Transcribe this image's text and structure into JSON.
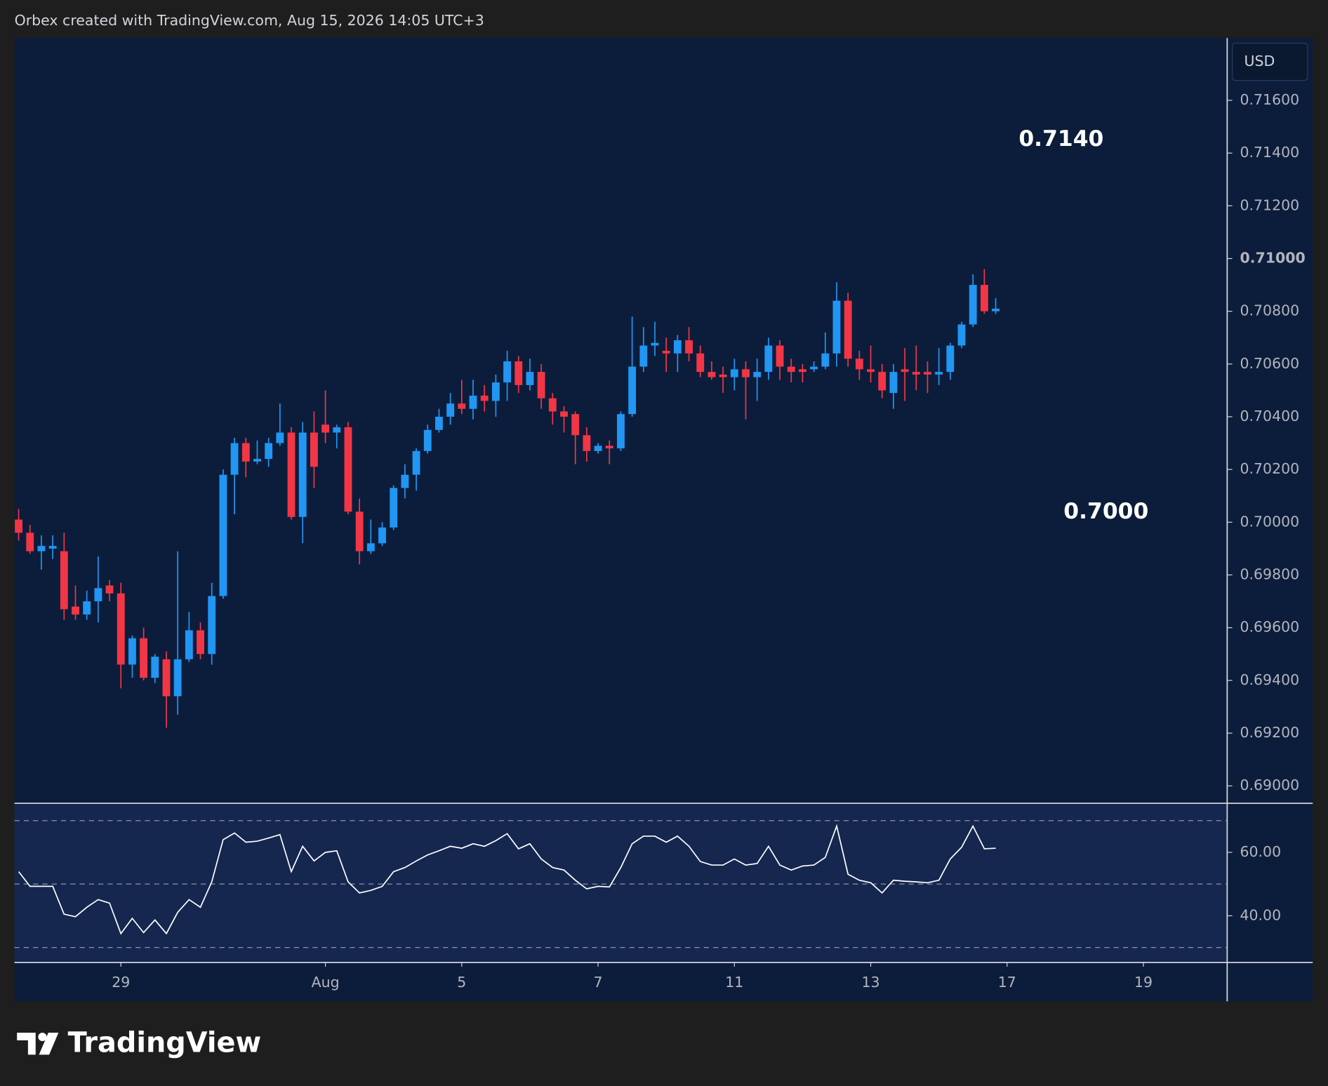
{
  "header": {
    "title": "Orbex created with TradingView.com, Aug 15, 2026 14:05 UTC+3",
    "currency": "USD",
    "brand": "TradingView"
  },
  "chart_data": [
    {
      "type": "candlestick",
      "up_color": "#2196f3",
      "down_color": "#f23645",
      "annotations": [
        "0.7140",
        "0.7000"
      ],
      "open": [
        0.7001,
        0.6996,
        0.6989,
        0.699,
        0.6989,
        0.6968,
        0.6965,
        0.697,
        0.6976,
        0.6973,
        0.6946,
        0.6956,
        0.6941,
        0.6948,
        0.6934,
        0.6948,
        0.6959,
        0.695,
        0.6972,
        0.7018,
        0.703,
        0.7023,
        0.7024,
        0.703,
        0.7034,
        0.7002,
        0.7034,
        0.7037,
        0.7034,
        0.7036,
        0.7004,
        0.6989,
        0.6992,
        0.6998,
        0.7013,
        0.7018,
        0.7027,
        0.7035,
        0.704,
        0.7045,
        0.7043,
        0.7048,
        0.7046,
        0.7053,
        0.7061,
        0.7052,
        0.7057,
        0.7047,
        0.7042,
        0.7041,
        0.7033,
        0.7027,
        0.7029,
        0.7028,
        0.7041,
        0.7059,
        0.7067,
        0.7065,
        0.7064,
        0.7069,
        0.7064,
        0.7057,
        0.7056,
        0.7055,
        0.7058,
        0.7055,
        0.7057,
        0.7067,
        0.7059,
        0.7058,
        0.7058,
        0.7059,
        0.7064,
        0.7084,
        0.7062,
        0.7058,
        0.7057,
        0.7049,
        0.7058,
        0.7057,
        0.7057,
        0.7056,
        0.7057,
        0.7067,
        0.7075,
        0.709,
        0.708
      ],
      "high": [
        0.7005,
        0.6999,
        0.6995,
        0.6995,
        0.6996,
        0.6976,
        0.6974,
        0.6987,
        0.6978,
        0.6977,
        0.6957,
        0.696,
        0.695,
        0.6951,
        0.6989,
        0.6966,
        0.6962,
        0.6977,
        0.702,
        0.7032,
        0.7032,
        0.7031,
        0.7032,
        0.7045,
        0.7036,
        0.7038,
        0.7042,
        0.705,
        0.7037,
        0.7038,
        0.7009,
        0.7001,
        0.7,
        0.7014,
        0.7022,
        0.7028,
        0.7037,
        0.7043,
        0.7049,
        0.7054,
        0.7054,
        0.7052,
        0.7056,
        0.7065,
        0.7063,
        0.7062,
        0.706,
        0.7049,
        0.7044,
        0.7042,
        0.7036,
        0.703,
        0.7031,
        0.7042,
        0.7078,
        0.7074,
        0.7076,
        0.707,
        0.7071,
        0.7074,
        0.7067,
        0.7061,
        0.7059,
        0.7062,
        0.7061,
        0.7062,
        0.707,
        0.7069,
        0.7062,
        0.706,
        0.7061,
        0.7072,
        0.7091,
        0.7087,
        0.7065,
        0.7067,
        0.706,
        0.706,
        0.7066,
        0.7067,
        0.7061,
        0.7066,
        0.7068,
        0.7076,
        0.7094,
        0.7096,
        0.7085
      ],
      "low": [
        0.6993,
        0.6988,
        0.6982,
        0.6986,
        0.6963,
        0.6963,
        0.6963,
        0.6962,
        0.697,
        0.6937,
        0.6941,
        0.694,
        0.6939,
        0.6922,
        0.6927,
        0.6947,
        0.6948,
        0.6946,
        0.6971,
        0.7003,
        0.7017,
        0.7022,
        0.7021,
        0.7029,
        0.7001,
        0.6992,
        0.7013,
        0.703,
        0.7028,
        0.7003,
        0.6984,
        0.6988,
        0.6991,
        0.6997,
        0.7009,
        0.7012,
        0.7026,
        0.7034,
        0.7037,
        0.7041,
        0.7039,
        0.7042,
        0.704,
        0.7046,
        0.7049,
        0.705,
        0.7043,
        0.7037,
        0.7034,
        0.7022,
        0.7023,
        0.7026,
        0.7022,
        0.7027,
        0.704,
        0.7057,
        0.7063,
        0.7057,
        0.7057,
        0.7061,
        0.7055,
        0.7054,
        0.7049,
        0.705,
        0.7039,
        0.7046,
        0.7054,
        0.7054,
        0.7053,
        0.7053,
        0.7057,
        0.7058,
        0.7059,
        0.7059,
        0.7054,
        0.7053,
        0.7047,
        0.7043,
        0.7046,
        0.705,
        0.7049,
        0.7052,
        0.7054,
        0.7066,
        0.7074,
        0.7079,
        0.7079
      ],
      "close": [
        0.6996,
        0.6989,
        0.6991,
        0.6991,
        0.6967,
        0.6965,
        0.697,
        0.6975,
        0.6973,
        0.6946,
        0.6956,
        0.6941,
        0.6949,
        0.6934,
        0.6948,
        0.6959,
        0.695,
        0.6972,
        0.7018,
        0.703,
        0.7023,
        0.7024,
        0.703,
        0.7034,
        0.7002,
        0.7034,
        0.7021,
        0.7034,
        0.7036,
        0.7004,
        0.6989,
        0.6992,
        0.6998,
        0.7013,
        0.7018,
        0.7027,
        0.7035,
        0.704,
        0.7045,
        0.7043,
        0.7048,
        0.7046,
        0.7053,
        0.7061,
        0.7052,
        0.7057,
        0.7047,
        0.7042,
        0.704,
        0.7033,
        0.7027,
        0.7029,
        0.7028,
        0.7041,
        0.7059,
        0.7067,
        0.7068,
        0.7064,
        0.7069,
        0.7064,
        0.7057,
        0.7055,
        0.7055,
        0.7058,
        0.7055,
        0.7057,
        0.7067,
        0.7059,
        0.7057,
        0.7057,
        0.7059,
        0.7064,
        0.7084,
        0.7062,
        0.7058,
        0.7057,
        0.705,
        0.7057,
        0.7057,
        0.7056,
        0.7056,
        0.7057,
        0.7067,
        0.7075,
        0.709,
        0.708,
        0.7081
      ],
      "xlim": [
        -0.37,
        106.3
      ],
      "xticks": [
        {
          "value": 9,
          "label": "29"
        },
        {
          "value": 27,
          "label": "Aug"
        },
        {
          "value": 39,
          "label": "5"
        },
        {
          "value": 51,
          "label": "7"
        },
        {
          "value": 63,
          "label": "11"
        },
        {
          "value": 75,
          "label": "13"
        },
        {
          "value": 87,
          "label": "17"
        },
        {
          "value": 99,
          "label": "19"
        }
      ],
      "ylim": [
        0.68934,
        0.71836
      ],
      "yticks": [
        {
          "value": 0.69,
          "label": "0.69000"
        },
        {
          "value": 0.692,
          "label": "0.69200"
        },
        {
          "value": 0.694,
          "label": "0.69400"
        },
        {
          "value": 0.696,
          "label": "0.69600"
        },
        {
          "value": 0.698,
          "label": "0.69800"
        },
        {
          "value": 0.7,
          "label": "0.70000"
        },
        {
          "value": 0.702,
          "label": "0.70200"
        },
        {
          "value": 0.704,
          "label": "0.70400"
        },
        {
          "value": 0.706,
          "label": "0.70600"
        },
        {
          "value": 0.708,
          "label": "0.70800"
        },
        {
          "value": 0.71,
          "label": "0.71000"
        },
        {
          "value": 0.712,
          "label": "0.71200"
        },
        {
          "value": 0.714,
          "label": "0.71400"
        },
        {
          "value": 0.716,
          "label": "0.71600"
        }
      ]
    },
    {
      "type": "line",
      "color": "#ffffff",
      "values": [
        53.9,
        49.3,
        49.3,
        49.3,
        40.5,
        39.7,
        42.7,
        45.1,
        44.0,
        34.4,
        39.2,
        34.7,
        38.7,
        34.4,
        41.1,
        45.1,
        42.7,
        50.7,
        64.0,
        66.1,
        63.2,
        63.5,
        64.5,
        65.6,
        53.9,
        61.9,
        57.3,
        60.0,
        60.5,
        50.7,
        47.2,
        48.0,
        49.3,
        53.9,
        55.2,
        57.3,
        59.2,
        60.5,
        61.9,
        61.3,
        62.7,
        61.9,
        63.7,
        65.9,
        61.1,
        62.7,
        57.9,
        55.2,
        54.4,
        51.2,
        48.5,
        49.3,
        49.1,
        55.2,
        62.7,
        65.1,
        65.1,
        63.2,
        65.1,
        61.9,
        57.1,
        56.0,
        56.0,
        57.9,
        56.0,
        56.5,
        61.9,
        56.0,
        54.4,
        55.7,
        56.0,
        58.4,
        68.3,
        53.1,
        51.2,
        50.4,
        47.2,
        51.2,
        50.9,
        50.7,
        50.4,
        51.2,
        57.9,
        61.6,
        68.3,
        61.1,
        61.3
      ],
      "ylim": [
        25.3,
        75.2
      ],
      "yticks": [
        {
          "value": 40,
          "label": "40.00"
        },
        {
          "value": 60,
          "label": "60.00"
        }
      ],
      "bands": [
        30,
        50,
        70
      ]
    }
  ]
}
